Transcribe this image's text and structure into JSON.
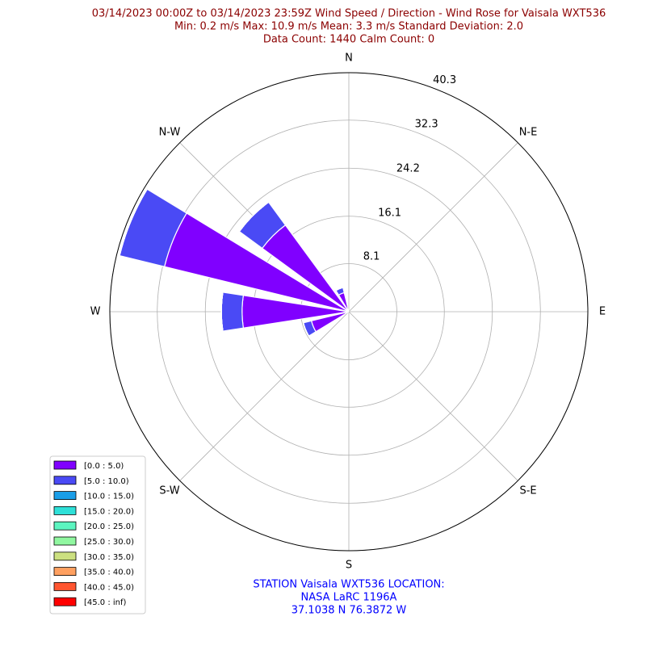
{
  "chart_data": {
    "type": "windrose",
    "title_lines": [
      "03/14/2023 00:00Z to 03/14/2023 23:59Z Wind Speed / Direction - Wind Rose for Vaisala WXT536",
      "Min: 0.2 m/s   Max: 10.9 m/s   Mean: 3.3 m/s  Standard Deviation: 2.0",
      "Data Count: 1440  Calm Count:  0"
    ],
    "footnote_lines": [
      "STATION Vaisala WXT536 LOCATION:",
      "NASA LaRC 1196A",
      "37.1038 N 76.3872 W"
    ],
    "categories": [
      "N",
      null,
      "N-E",
      null,
      "E",
      null,
      "S-E",
      null,
      "S",
      null,
      "S-W",
      null,
      "W",
      null,
      "N-W",
      null
    ],
    "ylim": [
      0,
      40.3
    ],
    "yticks": [
      8.1,
      16.1,
      24.2,
      32.3,
      40.3
    ],
    "grid": true,
    "legend_position": "lower left",
    "series": [
      {
        "name": "[0.0 : 5.0)",
        "color": "#8000ff",
        "values": [
          0,
          0,
          0,
          0,
          0,
          0,
          0,
          0,
          0,
          0,
          0,
          6.5,
          18.0,
          32.0,
          18.1,
          3.3
        ]
      },
      {
        "name": "[5.0 : 10.0)",
        "color": "#4a4af5",
        "values": [
          0,
          0,
          0,
          0,
          0,
          0,
          0,
          0,
          0,
          0,
          0,
          1.4,
          3.5,
          7.8,
          4.8,
          0.9
        ]
      },
      {
        "name": "[10.0 : 15.0)",
        "color": "#1a9ee8",
        "values": [
          0,
          0,
          0,
          0,
          0,
          0,
          0,
          0,
          0,
          0,
          0,
          0,
          0,
          0,
          0,
          0
        ]
      },
      {
        "name": "[15.0 : 20.0)",
        "color": "#2ee0d8",
        "values": [
          0,
          0,
          0,
          0,
          0,
          0,
          0,
          0,
          0,
          0,
          0,
          0,
          0,
          0,
          0,
          0
        ]
      },
      {
        "name": "[20.0 : 25.0)",
        "color": "#5cf5c0",
        "values": [
          0,
          0,
          0,
          0,
          0,
          0,
          0,
          0,
          0,
          0,
          0,
          0,
          0,
          0,
          0,
          0
        ]
      },
      {
        "name": "[25.0 : 30.0)",
        "color": "#90f7a0",
        "values": [
          0,
          0,
          0,
          0,
          0,
          0,
          0,
          0,
          0,
          0,
          0,
          0,
          0,
          0,
          0,
          0
        ]
      },
      {
        "name": "[30.0 : 35.0)",
        "color": "#cce080",
        "values": [
          0,
          0,
          0,
          0,
          0,
          0,
          0,
          0,
          0,
          0,
          0,
          0,
          0,
          0,
          0,
          0
        ]
      },
      {
        "name": "[35.0 : 40.0)",
        "color": "#ffa060",
        "values": [
          0,
          0,
          0,
          0,
          0,
          0,
          0,
          0,
          0,
          0,
          0,
          0,
          0,
          0,
          0,
          0
        ]
      },
      {
        "name": "[40.0 : 45.0)",
        "color": "#ff5530",
        "values": [
          0,
          0,
          0,
          0,
          0,
          0,
          0,
          0,
          0,
          0,
          0,
          0,
          0,
          0,
          0,
          0
        ]
      },
      {
        "name": "[45.0 : inf)",
        "color": "#ff0000",
        "values": [
          0,
          0,
          0,
          0,
          0,
          0,
          0,
          0,
          0,
          0,
          0,
          0,
          0,
          0,
          0,
          0
        ]
      }
    ]
  }
}
